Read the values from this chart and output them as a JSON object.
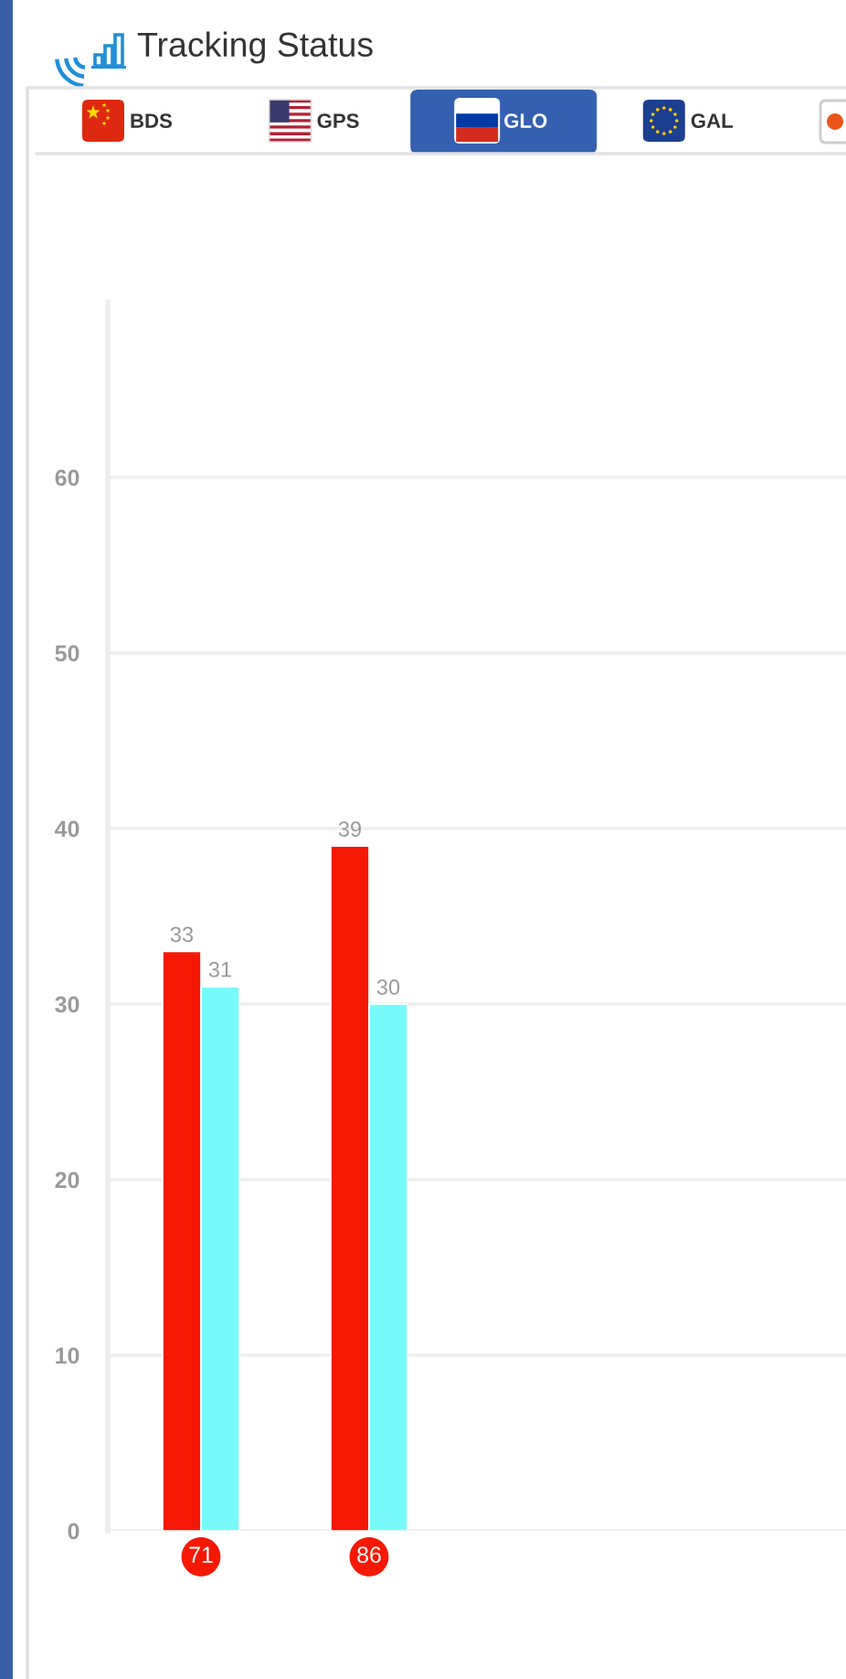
{
  "chart_data": {
    "type": "bar",
    "title": "Tracking Status",
    "annotations": [
      "BDS",
      "GPS",
      "GLO",
      "GAL"
    ],
    "categories": [
      "71",
      "86"
    ],
    "series": [
      {
        "color": "#f51905",
        "values": [
          33,
          39
        ]
      },
      {
        "color": "#78fafa",
        "values": [
          31,
          30
        ]
      }
    ],
    "ylim": [
      0,
      70
    ],
    "yticks": [
      0,
      10,
      20,
      30,
      40,
      50,
      60
    ],
    "grid": "y",
    "data_labels": true
  }
}
